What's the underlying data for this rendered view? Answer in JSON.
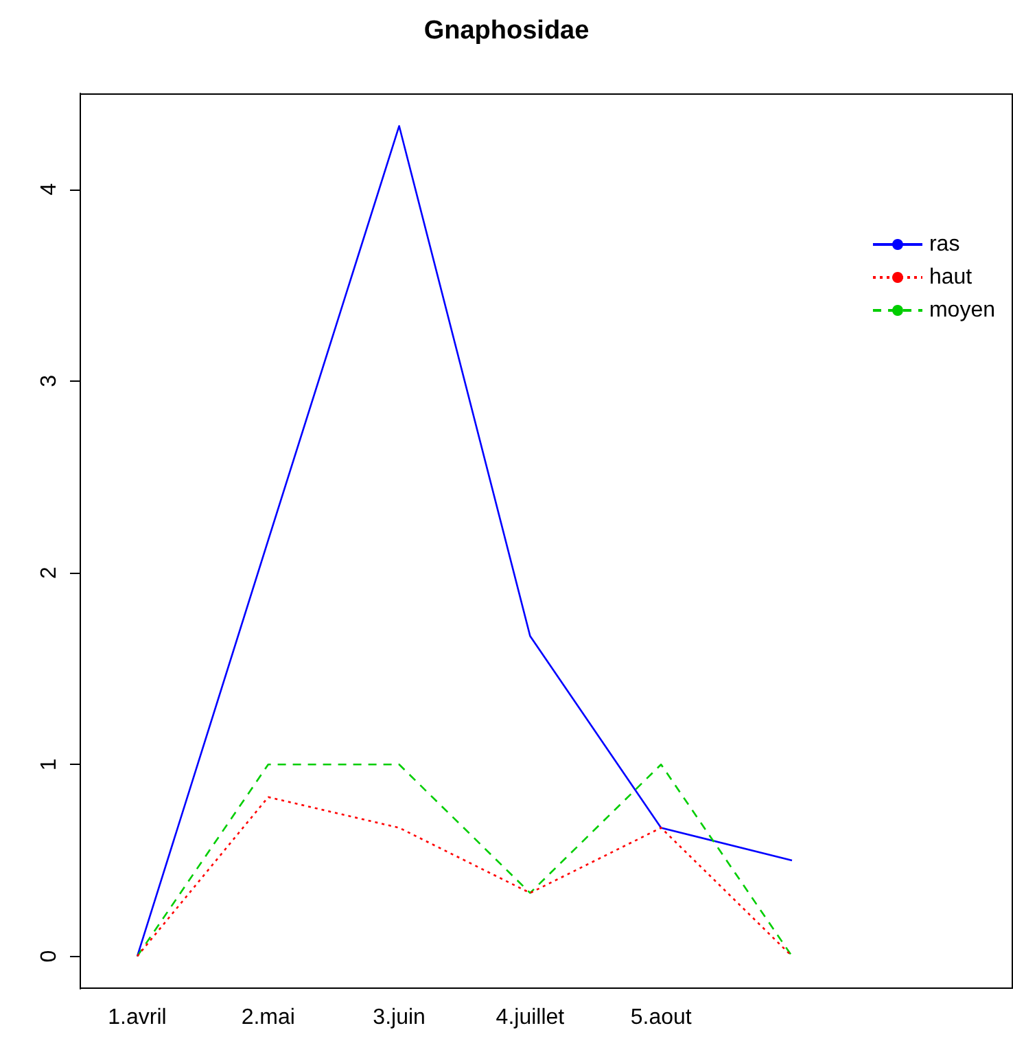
{
  "chart_data": {
    "type": "line",
    "title": "Gnaphosidae",
    "categories": [
      "1.avril",
      "2.mai",
      "3.juin",
      "4.juillet",
      "5.aout",
      null
    ],
    "series": [
      {
        "name": "ras",
        "color": "#0000ff",
        "line_style": "solid",
        "values": [
          0,
          2.17,
          4.33,
          1.67,
          0.67,
          0.5
        ]
      },
      {
        "name": "haut",
        "color": "#ff0000",
        "line_style": "dotted",
        "values": [
          0,
          0.83,
          0.67,
          0.33,
          0.67,
          0
        ]
      },
      {
        "name": "moyen",
        "color": "#00cd00",
        "line_style": "dashed",
        "values": [
          0,
          1,
          1,
          0.33,
          1,
          0
        ]
      }
    ],
    "ylim": [
      -0.17,
      4.5
    ],
    "yticks": [
      0,
      1,
      2,
      3,
      4
    ],
    "grid": false,
    "legend": "top right",
    "marker": "none"
  }
}
